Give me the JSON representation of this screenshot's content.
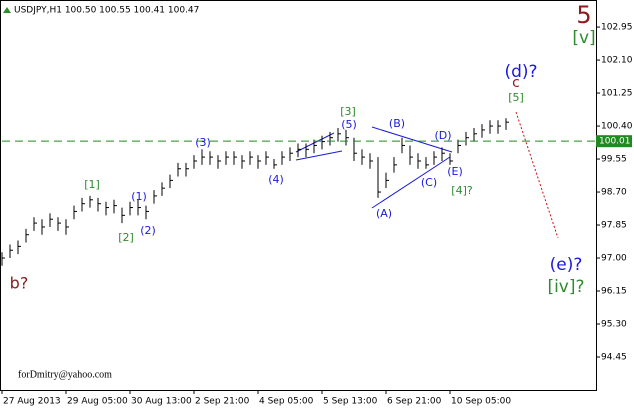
{
  "chart_data": {
    "type": "hlc",
    "title": "USDJPY,H1  100.50 100.55 100.41 100.47",
    "color": "#000000",
    "x": [
      0,
      4,
      8,
      12,
      16,
      20,
      24,
      28,
      32,
      36,
      40,
      44,
      48,
      52,
      56,
      60,
      64,
      68,
      72,
      76,
      80,
      84,
      88,
      92,
      96,
      100,
      104,
      108,
      112,
      116,
      120,
      124,
      128,
      132,
      136,
      140,
      144,
      148,
      152,
      156,
      160,
      164,
      168,
      172,
      176,
      180,
      184,
      188,
      192,
      196,
      200,
      204,
      208,
      212,
      216,
      220,
      224,
      228,
      232,
      236,
      240,
      244,
      248,
      252
    ],
    "high": [
      97.15,
      97.35,
      97.45,
      97.75,
      98.05,
      98.0,
      98.15,
      98.05,
      98.0,
      98.35,
      98.55,
      98.6,
      98.55,
      98.45,
      98.5,
      98.3,
      98.45,
      98.5,
      98.35,
      98.75,
      98.95,
      99.15,
      99.45,
      99.45,
      99.65,
      99.8,
      99.75,
      99.65,
      99.75,
      99.75,
      99.65,
      99.75,
      99.65,
      99.75,
      99.55,
      99.75,
      99.85,
      99.95,
      99.95,
      100.05,
      100.15,
      100.25,
      100.35,
      100.3,
      100.1,
      99.8,
      99.7,
      99.6,
      99.2,
      99.6,
      100.1,
      99.9,
      99.7,
      99.6,
      99.75,
      99.85,
      99.7,
      100.05,
      100.25,
      100.35,
      100.45,
      100.55,
      100.55,
      100.6
    ],
    "low": [
      96.8,
      97.0,
      97.1,
      97.4,
      97.7,
      97.6,
      97.8,
      97.7,
      97.6,
      98.0,
      98.2,
      98.3,
      98.2,
      98.1,
      98.15,
      97.9,
      98.1,
      98.1,
      98.0,
      98.4,
      98.6,
      98.8,
      99.1,
      99.1,
      99.3,
      99.4,
      99.4,
      99.3,
      99.4,
      99.4,
      99.3,
      99.4,
      99.3,
      99.4,
      99.3,
      99.4,
      99.5,
      99.6,
      99.6,
      99.7,
      99.8,
      99.9,
      100.0,
      99.9,
      99.5,
      99.4,
      99.3,
      98.55,
      98.8,
      99.2,
      99.7,
      99.4,
      99.3,
      99.3,
      99.4,
      99.5,
      99.4,
      99.7,
      99.9,
      100.0,
      100.1,
      100.2,
      100.2,
      100.3
    ],
    "close": [
      97.0,
      97.2,
      97.3,
      97.6,
      97.9,
      97.8,
      98.0,
      97.9,
      97.8,
      98.2,
      98.4,
      98.5,
      98.4,
      98.3,
      98.35,
      98.1,
      98.3,
      98.3,
      98.2,
      98.6,
      98.8,
      99.0,
      99.3,
      99.3,
      99.5,
      99.6,
      99.6,
      99.5,
      99.6,
      99.6,
      99.5,
      99.6,
      99.5,
      99.6,
      99.4,
      99.6,
      99.7,
      99.8,
      99.8,
      99.9,
      100.0,
      100.1,
      100.2,
      100.1,
      99.7,
      99.6,
      99.5,
      98.7,
      99.0,
      99.4,
      99.9,
      99.6,
      99.5,
      99.4,
      99.6,
      99.7,
      99.5,
      99.9,
      100.1,
      100.2,
      100.3,
      100.4,
      100.4,
      100.5
    ],
    "xlim": [
      0,
      297
    ],
    "xticks": [
      {
        "value": 0,
        "label": "27 Aug 2013"
      },
      {
        "value": 32,
        "label": "29 Aug 05:00"
      },
      {
        "value": 64,
        "label": "30 Aug 13:00"
      },
      {
        "value": 96,
        "label": "2 Sep 21:00"
      },
      {
        "value": 128,
        "label": "4 Sep 05:00"
      },
      {
        "value": 160,
        "label": "5 Sep 13:00"
      },
      {
        "value": 192,
        "label": "6 Sep 21:00"
      },
      {
        "value": 224,
        "label": "10 Sep 05:00"
      }
    ],
    "ylim": [
      93.6,
      103.57
    ],
    "yticks": [
      102.95,
      {
        "value": 102.1,
        "label": "102.10"
      },
      101.25,
      {
        "value": 100.4,
        "label": "100.40"
      },
      99.55,
      {
        "value": 98.7,
        "label": "98.70"
      },
      97.85,
      {
        "value": 97,
        "label": "97.00"
      },
      96.15,
      {
        "value": 95.3,
        "label": "95.30"
      },
      94.45
    ],
    "price_line": 100.01,
    "price_line_color": "#1f8a1f",
    "annotations": [
      {
        "text": "5",
        "color": "#8b1a1a"
      },
      {
        "text": "[v]",
        "color": "#2e8b2e"
      },
      {
        "text": "(d)?",
        "color": "#1a1adb"
      },
      {
        "text": "c",
        "color": "#8b1a1a"
      },
      {
        "text": "[5]",
        "color": "#2e8b2e"
      },
      {
        "text": "[3]",
        "color": "#2e8b2e"
      },
      {
        "text": "(5)",
        "color": "#1a1adb"
      },
      {
        "text": "(B)",
        "color": "#1a1adb"
      },
      {
        "text": "(D)",
        "color": "#1a1adb"
      },
      {
        "text": "(3)",
        "color": "#1a1adb"
      },
      {
        "text": "(4)",
        "color": "#1a1adb"
      },
      {
        "text": "(E)",
        "color": "#1a1adb"
      },
      {
        "text": "(C)",
        "color": "#1a1adb"
      },
      {
        "text": "[4]?",
        "color": "#2e8b2e"
      },
      {
        "text": "[1]",
        "color": "#2e8b2e"
      },
      {
        "text": "(1)",
        "color": "#1a1adb"
      },
      {
        "text": "(2)",
        "color": "#1a1adb"
      },
      {
        "text": "[2]",
        "color": "#2e8b2e"
      },
      {
        "text": "(A)",
        "color": "#1a1adb"
      },
      {
        "text": "b?",
        "color": "#8b1a1a"
      },
      {
        "text": "(e)?",
        "color": "#1a1adb"
      },
      {
        "text": "[iv]?",
        "color": "#2e8b2e"
      },
      {
        "text": "forDmitry@yahoo.com",
        "color": "#000000"
      }
    ]
  }
}
